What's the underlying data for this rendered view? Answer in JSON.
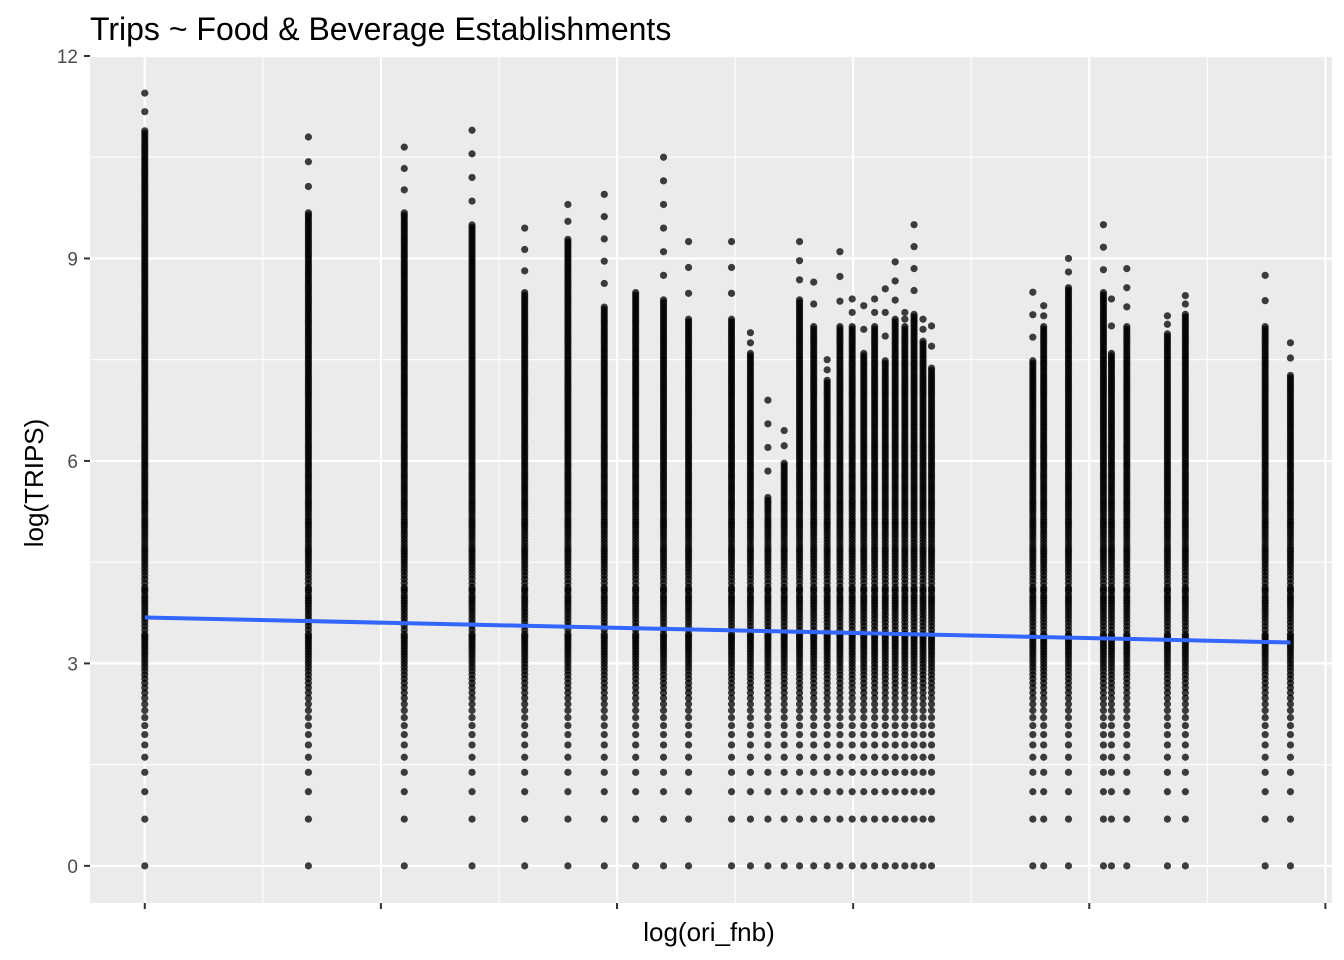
{
  "chart_data": {
    "type": "scatter",
    "title": "Trips ~ Food & Beverage Establishments",
    "xlabel": "log(ori_fnb)",
    "ylabel": "log(TRIPS)",
    "ylim": [
      -0.55,
      12
    ],
    "y_ticks": [
      0,
      3,
      6,
      9,
      12
    ],
    "x_tick_labels": [],
    "grid": true,
    "legend": "none",
    "colors": {
      "panel": "#ebebeb",
      "grid": "#ffffff",
      "points": "#000000",
      "trend": "#3366ff",
      "tick_text": "#4d4d4d"
    },
    "columns": [
      {
        "x": 0.0,
        "ymax": 11.45,
        "dense_max": 10.9,
        "has_zero": true
      },
      {
        "x": 0.693,
        "ymax": 10.8,
        "dense_max": 9.7,
        "has_zero": true
      },
      {
        "x": 1.099,
        "ymax": 10.65,
        "dense_max": 9.7,
        "has_zero": true
      },
      {
        "x": 1.386,
        "ymax": 10.9,
        "dense_max": 9.5,
        "has_zero": true
      },
      {
        "x": 1.609,
        "ymax": 9.45,
        "dense_max": 8.5,
        "has_zero": true
      },
      {
        "x": 1.792,
        "ymax": 9.8,
        "dense_max": 9.3,
        "has_zero": true
      },
      {
        "x": 1.946,
        "ymax": 9.95,
        "dense_max": 8.3,
        "has_zero": true
      },
      {
        "x": 2.079,
        "ymax": 8.5,
        "dense_max": 8.5,
        "has_zero": true
      },
      {
        "x": 2.197,
        "ymax": 10.5,
        "dense_max": 8.4,
        "has_zero": true
      },
      {
        "x": 2.303,
        "ymax": 9.25,
        "dense_max": 8.1,
        "has_zero": true
      },
      {
        "x": 2.485,
        "ymax": 9.25,
        "dense_max": 8.1,
        "has_zero": true
      },
      {
        "x": 2.565,
        "ymax": 7.9,
        "dense_max": 7.6,
        "has_zero": true
      },
      {
        "x": 2.639,
        "ymax": 6.9,
        "dense_max": 5.5,
        "has_zero": true
      },
      {
        "x": 2.708,
        "ymax": 6.45,
        "dense_max": 6.0,
        "has_zero": true
      },
      {
        "x": 2.773,
        "ymax": 9.25,
        "dense_max": 8.4,
        "has_zero": true
      },
      {
        "x": 2.833,
        "ymax": 8.65,
        "dense_max": 8.0,
        "has_zero": true
      },
      {
        "x": 2.89,
        "ymax": 7.5,
        "dense_max": 7.2,
        "has_zero": true
      },
      {
        "x": 2.944,
        "ymax": 9.1,
        "dense_max": 8.0,
        "has_zero": true
      },
      {
        "x": 2.996,
        "ymax": 8.4,
        "dense_max": 8.0,
        "has_zero": true
      },
      {
        "x": 3.045,
        "ymax": 8.3,
        "dense_max": 7.6,
        "has_zero": true
      },
      {
        "x": 3.091,
        "ymax": 8.4,
        "dense_max": 8.0,
        "has_zero": true
      },
      {
        "x": 3.136,
        "ymax": 8.55,
        "dense_max": 7.5,
        "has_zero": true
      },
      {
        "x": 3.178,
        "ymax": 8.95,
        "dense_max": 8.1,
        "has_zero": true
      },
      {
        "x": 3.219,
        "ymax": 8.2,
        "dense_max": 8.0,
        "has_zero": true
      },
      {
        "x": 3.258,
        "ymax": 9.5,
        "dense_max": 8.2,
        "has_zero": true
      },
      {
        "x": 3.296,
        "ymax": 8.1,
        "dense_max": 7.8,
        "has_zero": true
      },
      {
        "x": 3.332,
        "ymax": 8.0,
        "dense_max": 7.4,
        "has_zero": true
      },
      {
        "x": 3.761,
        "ymax": 8.5,
        "dense_max": 7.5,
        "has_zero": true
      },
      {
        "x": 3.807,
        "ymax": 8.3,
        "dense_max": 8.0,
        "has_zero": true
      },
      {
        "x": 3.912,
        "ymax": 9.0,
        "dense_max": 8.6,
        "has_zero": true
      },
      {
        "x": 4.06,
        "ymax": 9.5,
        "dense_max": 8.5,
        "has_zero": true
      },
      {
        "x": 4.094,
        "ymax": 8.4,
        "dense_max": 7.6,
        "has_zero": true
      },
      {
        "x": 4.159,
        "ymax": 8.85,
        "dense_max": 8.0,
        "has_zero": true
      },
      {
        "x": 4.331,
        "ymax": 8.15,
        "dense_max": 7.9,
        "has_zero": true
      },
      {
        "x": 4.407,
        "ymax": 8.45,
        "dense_max": 8.2,
        "has_zero": true
      },
      {
        "x": 4.745,
        "ymax": 8.75,
        "dense_max": 8.0,
        "has_zero": true
      },
      {
        "x": 4.852,
        "ymax": 7.75,
        "dense_max": 7.3,
        "has_zero": true
      }
    ],
    "trend_line": {
      "x": [
        0.0,
        4.852
      ],
      "y": [
        3.68,
        3.31
      ]
    }
  }
}
